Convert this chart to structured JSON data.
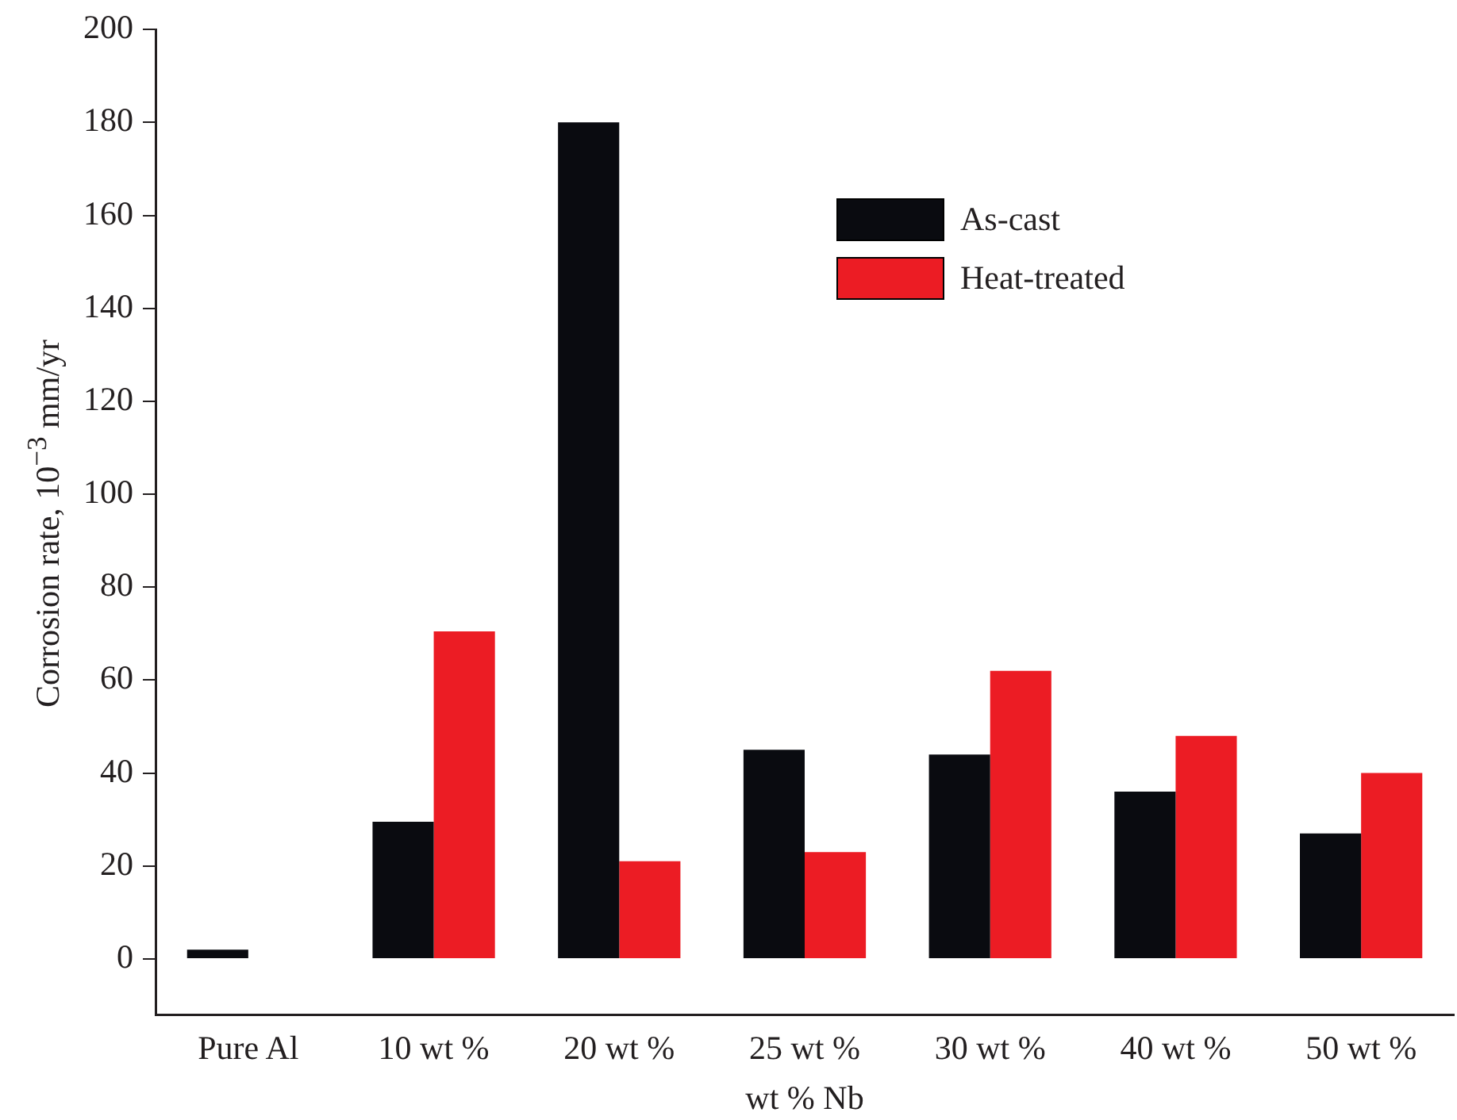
{
  "chart_data": {
    "type": "bar",
    "xlabel": "wt % Nb",
    "ylabel": "Corrosion rate, 10$^{−3}$ mm/yr",
    "categories": [
      "Pure Al",
      "10 wt %",
      "20 wt %",
      "25 wt %",
      "30 wt %",
      "40 wt %",
      "50 wt %"
    ],
    "series": [
      {
        "name": "As-cast",
        "color": "#0a0b10",
        "values": [
          2,
          29.5,
          180,
          45,
          44,
          36,
          27
        ]
      },
      {
        "name": "Heat-treated",
        "color": "#ec1c24",
        "values": [
          null,
          70.5,
          21,
          23,
          62,
          48,
          40
        ]
      }
    ],
    "ylim": [
      -12,
      200
    ],
    "yticks": [
      0,
      20,
      40,
      60,
      80,
      100,
      120,
      140,
      160,
      180,
      200
    ],
    "grid": false,
    "legend": "top right"
  }
}
